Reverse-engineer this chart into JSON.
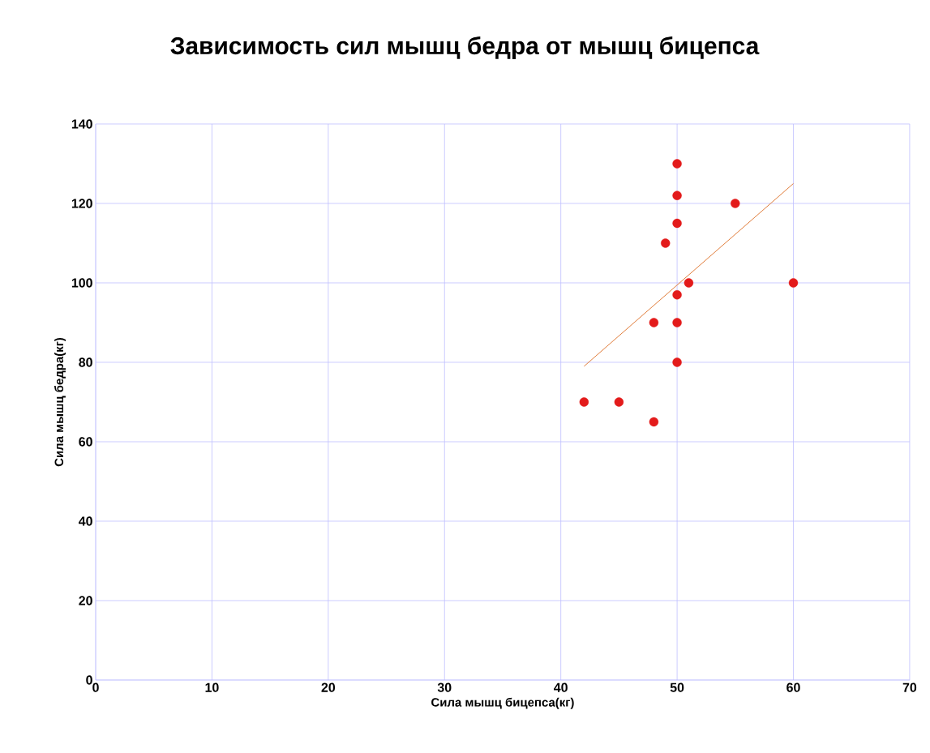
{
  "chart_data": {
    "type": "scatter",
    "title": "Зависимость сил мышц бедра от мышц бицепса",
    "xlabel": "Сила мышц бицепса(кг)",
    "ylabel": "Сила мышц бедра(кг)",
    "xlim": [
      0,
      70
    ],
    "ylim": [
      0,
      140
    ],
    "xticks": [
      0,
      10,
      20,
      30,
      40,
      50,
      60,
      70
    ],
    "yticks": [
      0,
      20,
      40,
      60,
      80,
      100,
      120,
      140
    ],
    "grid": true,
    "series": [
      {
        "color": "#e31b1b",
        "marker": "circle",
        "x": [
          50,
          50,
          55,
          50,
          49,
          51,
          60,
          50,
          48,
          50,
          50,
          42,
          45,
          48
        ],
        "values": [
          130,
          122,
          120,
          115,
          110,
          100,
          100,
          97,
          90,
          90,
          80,
          70,
          70,
          65
        ]
      },
      {
        "type": "line",
        "color": "#e07b39",
        "marker": "none",
        "x": [
          42,
          60
        ],
        "values": [
          79,
          125
        ]
      }
    ]
  }
}
